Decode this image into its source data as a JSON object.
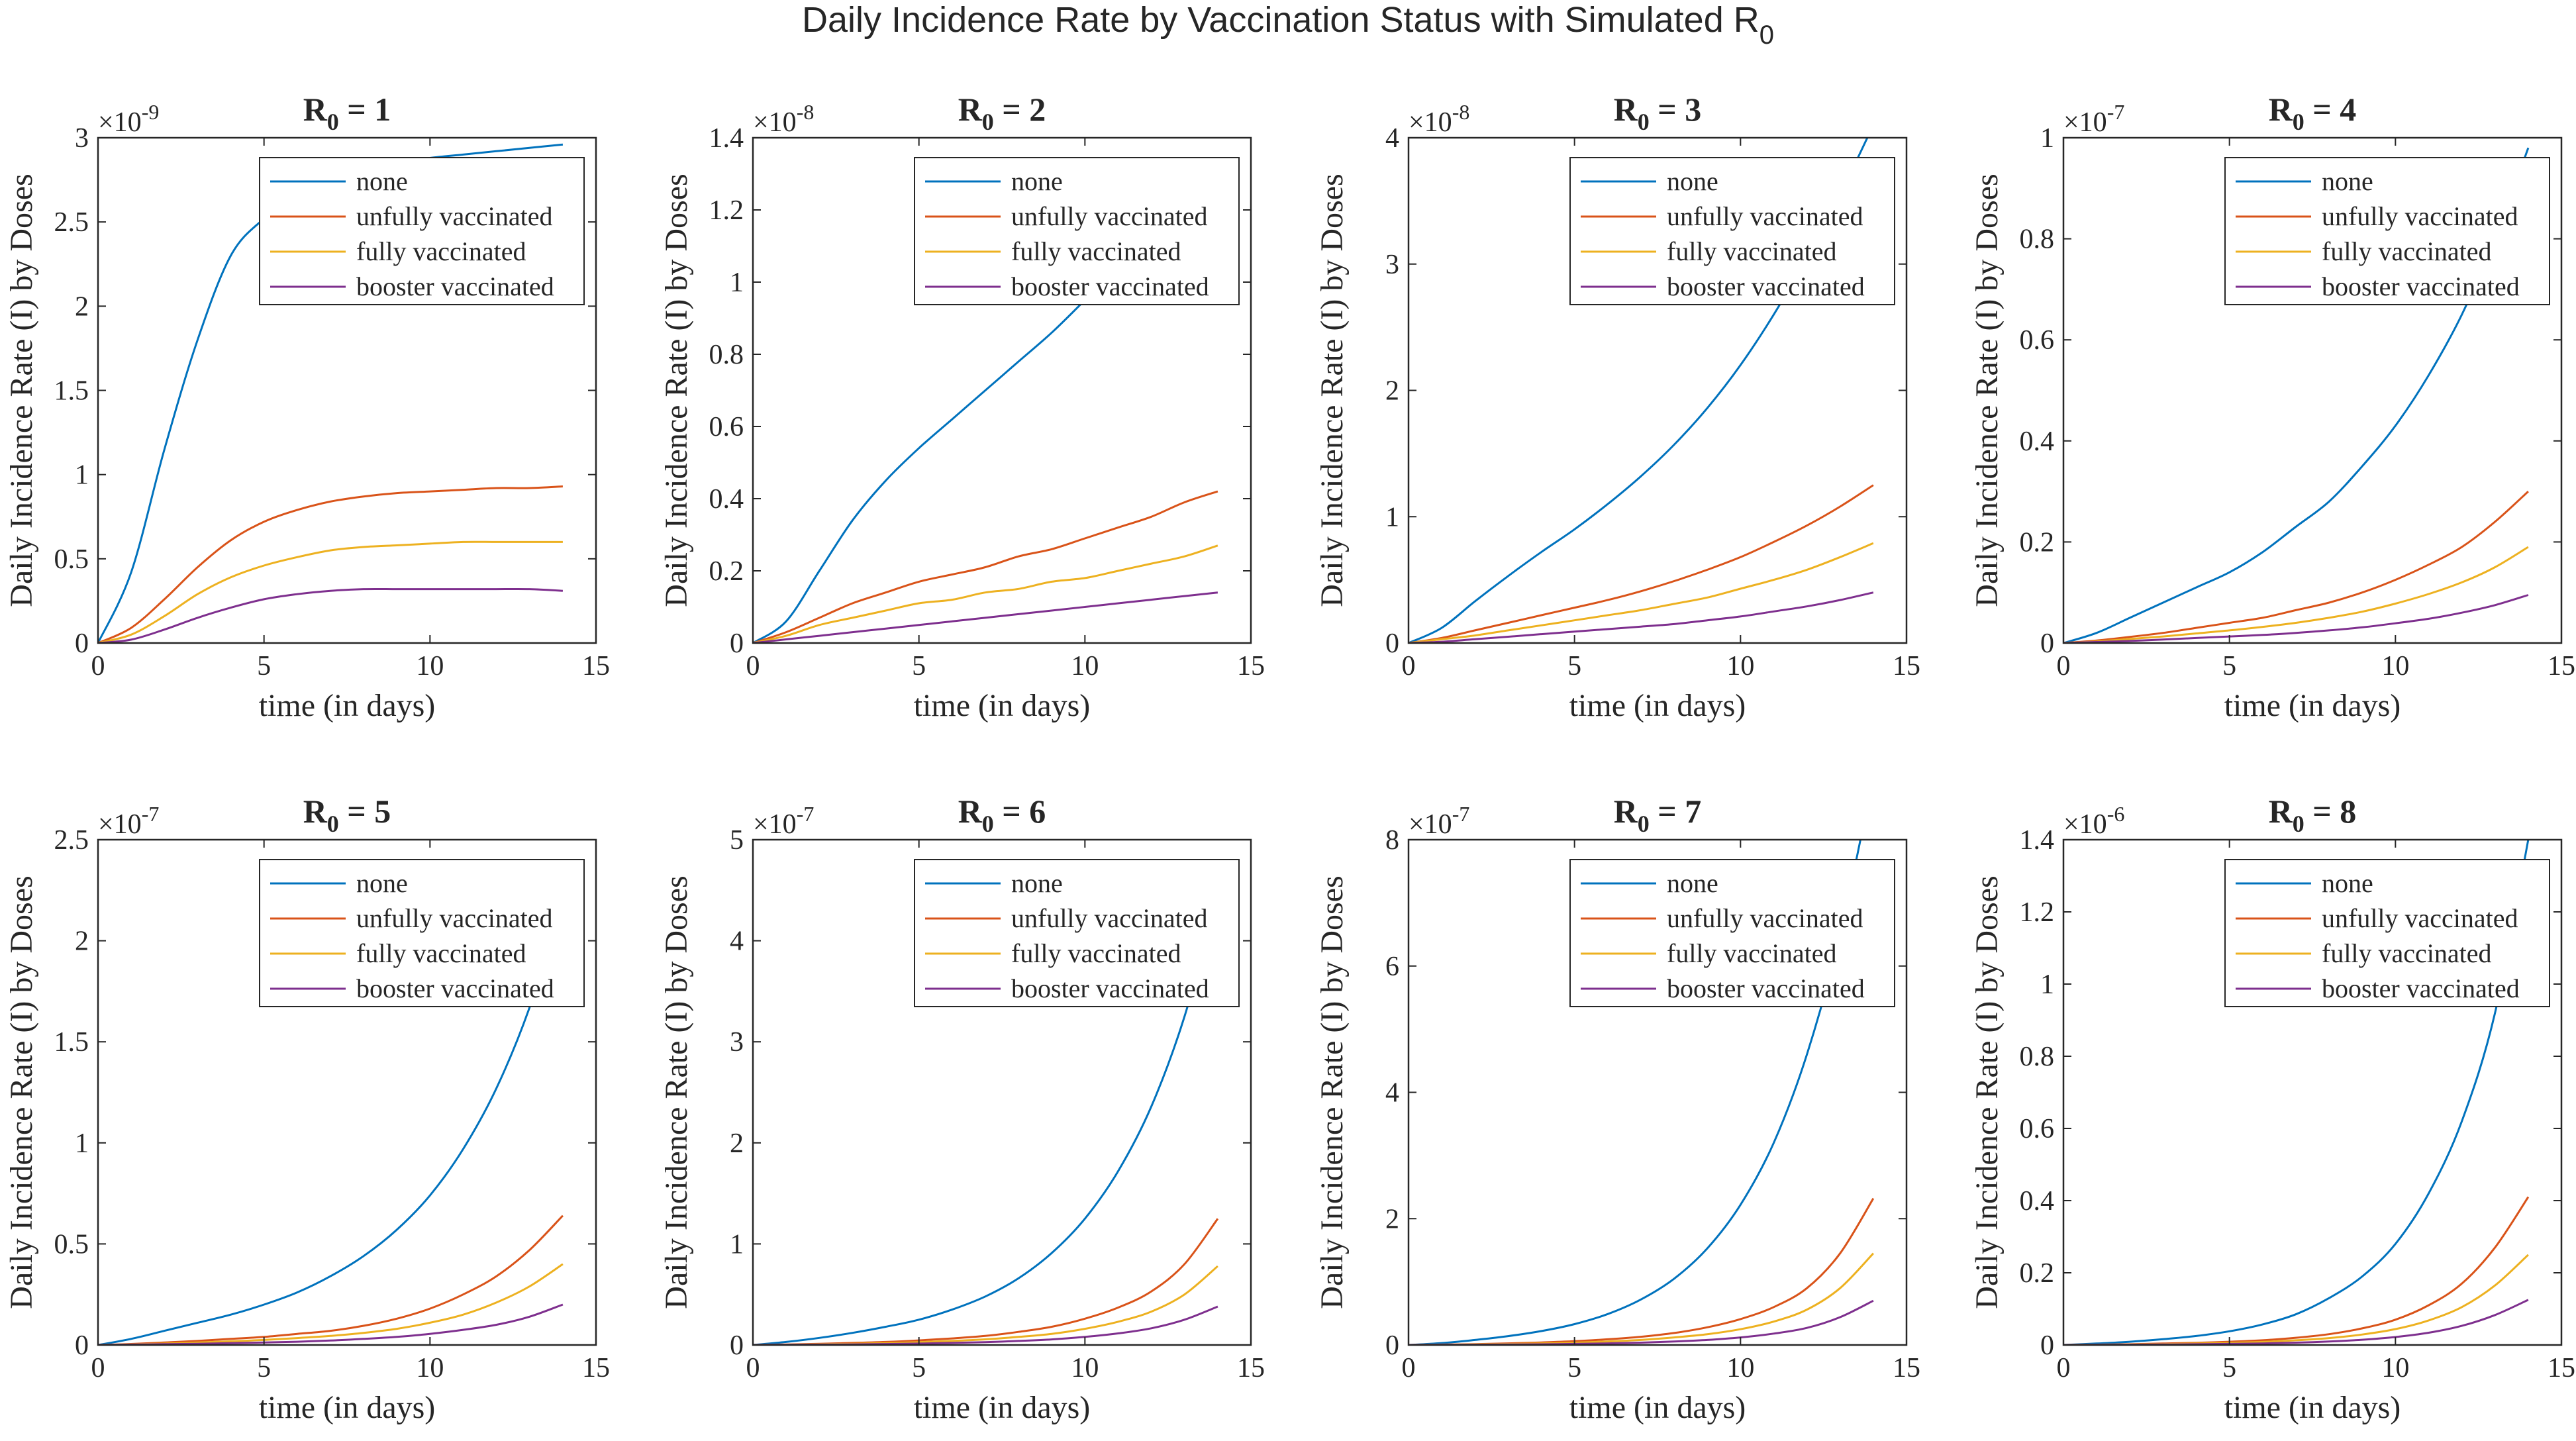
{
  "figure_title": {
    "main": "Daily Incidence Rate by Vaccination Status with Simulated R",
    "sub": "0"
  },
  "colors": {
    "none": "#0072BD",
    "unfully vaccinated": "#D95319",
    "fully vaccinated": "#EDB120",
    "booster vaccinated": "#7E2F8E",
    "axes": "#262626"
  },
  "chart_data": [
    {
      "type": "line",
      "title": "R0 = 1",
      "title_parts": {
        "pre": "R",
        "sub": "0",
        "post": " = 1"
      },
      "xlabel": "time (in days)",
      "ylabel": "Daily Incidence Rate (I) by Doses",
      "xlim": [
        0,
        15
      ],
      "ylim": [
        0,
        3
      ],
      "x_ticks": [
        0,
        5,
        10,
        15
      ],
      "y_ticks": [
        0,
        0.5,
        1,
        1.5,
        2,
        2.5,
        3
      ],
      "y_tick_labels": [
        "0",
        "0.5",
        "1",
        "1.5",
        "2",
        "2.5",
        "3"
      ],
      "y_exponent": {
        "base": "×10",
        "power": "-9"
      },
      "legend_position": "top-right",
      "x": [
        0,
        1,
        2,
        3,
        4,
        5,
        6,
        7,
        8,
        9,
        10,
        11,
        12,
        13,
        14
      ],
      "series": [
        {
          "name": "none",
          "values": [
            0,
            0.42,
            1.15,
            1.8,
            2.3,
            2.52,
            2.66,
            2.75,
            2.81,
            2.85,
            2.88,
            2.9,
            2.92,
            2.94,
            2.96
          ]
        },
        {
          "name": "unfully vaccinated",
          "values": [
            0,
            0.09,
            0.26,
            0.45,
            0.61,
            0.72,
            0.79,
            0.84,
            0.87,
            0.89,
            0.9,
            0.91,
            0.92,
            0.92,
            0.93
          ]
        },
        {
          "name": "fully vaccinated",
          "values": [
            0,
            0.05,
            0.16,
            0.29,
            0.39,
            0.46,
            0.51,
            0.55,
            0.57,
            0.58,
            0.59,
            0.6,
            0.6,
            0.6,
            0.6
          ]
        },
        {
          "name": "booster vaccinated",
          "values": [
            0,
            0.02,
            0.08,
            0.15,
            0.21,
            0.26,
            0.29,
            0.31,
            0.32,
            0.32,
            0.32,
            0.32,
            0.32,
            0.32,
            0.31
          ]
        }
      ]
    },
    {
      "type": "line",
      "title": "R0 = 2",
      "title_parts": {
        "pre": "R",
        "sub": "0",
        "post": " = 2"
      },
      "xlabel": "time (in days)",
      "ylabel": "Daily Incidence Rate (I) by Doses",
      "xlim": [
        0,
        15
      ],
      "ylim": [
        0,
        1.4
      ],
      "x_ticks": [
        0,
        5,
        10,
        15
      ],
      "y_ticks": [
        0,
        0.2,
        0.4,
        0.6,
        0.8,
        1,
        1.2,
        1.4
      ],
      "y_tick_labels": [
        "0",
        "0.2",
        "0.4",
        "0.6",
        "0.8",
        "1",
        "1.2",
        "1.4"
      ],
      "y_exponent": {
        "base": "×10",
        "power": "-8"
      },
      "legend_position": "top-right",
      "x": [
        0,
        1,
        2,
        3,
        4,
        5,
        6,
        7,
        8,
        9,
        10,
        11,
        12,
        13,
        14
      ],
      "series": [
        {
          "name": "none",
          "values": [
            0,
            0.06,
            0.2,
            0.34,
            0.45,
            0.54,
            0.62,
            0.7,
            0.78,
            0.86,
            0.95,
            1.04,
            1.13,
            1.22,
            1.32
          ]
        },
        {
          "name": "unfully vaccinated",
          "values": [
            0,
            0.03,
            0.07,
            0.11,
            0.14,
            0.17,
            0.19,
            0.21,
            0.24,
            0.26,
            0.29,
            0.32,
            0.35,
            0.39,
            0.42
          ]
        },
        {
          "name": "fully vaccinated",
          "values": [
            0,
            0.02,
            0.05,
            0.07,
            0.09,
            0.11,
            0.12,
            0.14,
            0.15,
            0.17,
            0.18,
            0.2,
            0.22,
            0.24,
            0.27
          ]
        },
        {
          "name": "booster vaccinated",
          "values": [
            0,
            0.01,
            0.02,
            0.03,
            0.04,
            0.05,
            0.06,
            0.07,
            0.08,
            0.09,
            0.1,
            0.11,
            0.12,
            0.13,
            0.14
          ]
        }
      ]
    },
    {
      "type": "line",
      "title": "R0 = 3",
      "title_parts": {
        "pre": "R",
        "sub": "0",
        "post": " = 3"
      },
      "xlabel": "time (in days)",
      "ylabel": "Daily Incidence Rate (I) by Doses",
      "xlim": [
        0,
        15
      ],
      "ylim": [
        0,
        4
      ],
      "x_ticks": [
        0,
        5,
        10,
        15
      ],
      "y_ticks": [
        0,
        1,
        2,
        3,
        4
      ],
      "y_tick_labels": [
        "0",
        "1",
        "2",
        "3",
        "4"
      ],
      "y_exponent": {
        "base": "×10",
        "power": "-8"
      },
      "legend_position": "top-right",
      "x": [
        0,
        1,
        2,
        3,
        4,
        5,
        6,
        7,
        8,
        9,
        10,
        11,
        12,
        13,
        14
      ],
      "series": [
        {
          "name": "none",
          "values": [
            0,
            0.12,
            0.33,
            0.53,
            0.72,
            0.9,
            1.1,
            1.32,
            1.57,
            1.86,
            2.2,
            2.6,
            3.05,
            3.55,
            4.1
          ]
        },
        {
          "name": "unfully vaccinated",
          "values": [
            0,
            0.04,
            0.1,
            0.16,
            0.22,
            0.28,
            0.34,
            0.41,
            0.49,
            0.58,
            0.68,
            0.8,
            0.93,
            1.08,
            1.25
          ]
        },
        {
          "name": "fully vaccinated",
          "values": [
            0,
            0.03,
            0.06,
            0.1,
            0.14,
            0.18,
            0.22,
            0.26,
            0.31,
            0.36,
            0.43,
            0.5,
            0.58,
            0.68,
            0.79
          ]
        },
        {
          "name": "booster vaccinated",
          "values": [
            0,
            0.01,
            0.03,
            0.05,
            0.07,
            0.09,
            0.11,
            0.13,
            0.15,
            0.18,
            0.21,
            0.25,
            0.29,
            0.34,
            0.4
          ]
        }
      ]
    },
    {
      "type": "line",
      "title": "R0 = 4",
      "title_parts": {
        "pre": "R",
        "sub": "0",
        "post": " = 4"
      },
      "xlabel": "time (in days)",
      "ylabel": "Daily Incidence Rate (I) by Doses",
      "xlim": [
        0,
        15
      ],
      "ylim": [
        0,
        1
      ],
      "x_ticks": [
        0,
        5,
        10,
        15
      ],
      "y_ticks": [
        0,
        0.2,
        0.4,
        0.6,
        0.8,
        1
      ],
      "y_tick_labels": [
        "0",
        "0.2",
        "0.4",
        "0.6",
        "0.8",
        "1"
      ],
      "y_exponent": {
        "base": "×10",
        "power": "-7"
      },
      "legend_position": "top-right",
      "x": [
        0,
        1,
        2,
        3,
        4,
        5,
        6,
        7,
        8,
        9,
        10,
        11,
        12,
        13,
        14
      ],
      "series": [
        {
          "name": "none",
          "values": [
            0,
            0.02,
            0.05,
            0.08,
            0.11,
            0.14,
            0.18,
            0.23,
            0.28,
            0.35,
            0.43,
            0.53,
            0.65,
            0.8,
            0.98
          ]
        },
        {
          "name": "unfully vaccinated",
          "values": [
            0,
            0.005,
            0.012,
            0.02,
            0.03,
            0.04,
            0.05,
            0.065,
            0.08,
            0.1,
            0.125,
            0.155,
            0.19,
            0.24,
            0.3
          ]
        },
        {
          "name": "fully vaccinated",
          "values": [
            0,
            0.003,
            0.008,
            0.013,
            0.019,
            0.025,
            0.032,
            0.04,
            0.05,
            0.062,
            0.078,
            0.097,
            0.12,
            0.15,
            0.19
          ]
        },
        {
          "name": "booster vaccinated",
          "values": [
            0,
            0.002,
            0.004,
            0.007,
            0.01,
            0.013,
            0.016,
            0.02,
            0.025,
            0.031,
            0.039,
            0.048,
            0.06,
            0.075,
            0.095
          ]
        }
      ]
    },
    {
      "type": "line",
      "title": "R0 = 5",
      "title_parts": {
        "pre": "R",
        "sub": "0",
        "post": " = 5"
      },
      "xlabel": "time (in days)",
      "ylabel": "Daily Incidence Rate (I) by Doses",
      "xlim": [
        0,
        15
      ],
      "ylim": [
        0,
        2.5
      ],
      "x_ticks": [
        0,
        5,
        10,
        15
      ],
      "y_ticks": [
        0,
        0.5,
        1,
        1.5,
        2,
        2.5
      ],
      "y_tick_labels": [
        "0",
        "0.5",
        "1",
        "1.5",
        "2",
        "2.5"
      ],
      "y_exponent": {
        "base": "×10",
        "power": "-7"
      },
      "legend_position": "top-right",
      "x": [
        0,
        1,
        2,
        3,
        4,
        5,
        6,
        7,
        8,
        9,
        10,
        11,
        12,
        13,
        14
      ],
      "series": [
        {
          "name": "none",
          "values": [
            0,
            0.03,
            0.07,
            0.11,
            0.15,
            0.2,
            0.26,
            0.34,
            0.44,
            0.57,
            0.74,
            0.97,
            1.27,
            1.67,
            2.2
          ]
        },
        {
          "name": "unfully vaccinated",
          "values": [
            0,
            0.005,
            0.012,
            0.02,
            0.03,
            0.04,
            0.055,
            0.07,
            0.095,
            0.13,
            0.18,
            0.25,
            0.34,
            0.47,
            0.64
          ]
        },
        {
          "name": "fully vaccinated",
          "values": [
            0,
            0.003,
            0.007,
            0.012,
            0.018,
            0.025,
            0.034,
            0.045,
            0.06,
            0.08,
            0.11,
            0.15,
            0.21,
            0.29,
            0.4
          ]
        },
        {
          "name": "booster vaccinated",
          "values": [
            0,
            0.002,
            0.004,
            0.006,
            0.009,
            0.012,
            0.016,
            0.022,
            0.03,
            0.04,
            0.055,
            0.075,
            0.1,
            0.14,
            0.2
          ]
        }
      ]
    },
    {
      "type": "line",
      "title": "R0 = 6",
      "title_parts": {
        "pre": "R",
        "sub": "0",
        "post": " = 6"
      },
      "xlabel": "time (in days)",
      "ylabel": "Daily Incidence Rate (I) by Doses",
      "xlim": [
        0,
        15
      ],
      "ylim": [
        0,
        5
      ],
      "x_ticks": [
        0,
        5,
        10,
        15
      ],
      "y_ticks": [
        0,
        1,
        2,
        3,
        4,
        5
      ],
      "y_tick_labels": [
        "0",
        "1",
        "2",
        "3",
        "4",
        "5"
      ],
      "y_exponent": {
        "base": "×10",
        "power": "-7"
      },
      "legend_position": "top-right",
      "x": [
        0,
        1,
        2,
        3,
        4,
        5,
        6,
        7,
        8,
        9,
        10,
        11,
        12,
        13,
        14
      ],
      "series": [
        {
          "name": "none",
          "values": [
            0,
            0.03,
            0.07,
            0.12,
            0.18,
            0.25,
            0.35,
            0.48,
            0.66,
            0.91,
            1.25,
            1.72,
            2.36,
            3.25,
            4.45
          ]
        },
        {
          "name": "unfully vaccinated",
          "values": [
            0,
            0.005,
            0.012,
            0.02,
            0.03,
            0.045,
            0.065,
            0.09,
            0.13,
            0.18,
            0.26,
            0.37,
            0.53,
            0.8,
            1.25
          ]
        },
        {
          "name": "fully vaccinated",
          "values": [
            0,
            0.003,
            0.007,
            0.012,
            0.019,
            0.028,
            0.04,
            0.056,
            0.08,
            0.11,
            0.16,
            0.23,
            0.33,
            0.5,
            0.78
          ]
        },
        {
          "name": "booster vaccinated",
          "values": [
            0,
            0.002,
            0.004,
            0.006,
            0.009,
            0.014,
            0.02,
            0.028,
            0.04,
            0.055,
            0.08,
            0.115,
            0.165,
            0.25,
            0.38
          ]
        }
      ]
    },
    {
      "type": "line",
      "title": "R0 = 7",
      "title_parts": {
        "pre": "R",
        "sub": "0",
        "post": " = 7"
      },
      "xlabel": "time (in days)",
      "ylabel": "Daily Incidence Rate (I) by Doses",
      "xlim": [
        0,
        15
      ],
      "ylim": [
        0,
        8
      ],
      "x_ticks": [
        0,
        5,
        10,
        15
      ],
      "y_ticks": [
        0,
        2,
        4,
        6,
        8
      ],
      "y_tick_labels": [
        "0",
        "2",
        "4",
        "6",
        "8"
      ],
      "y_exponent": {
        "base": "×10",
        "power": "-7"
      },
      "legend_position": "top-right",
      "x": [
        0,
        1,
        2,
        3,
        4,
        5,
        6,
        7,
        8,
        9,
        10,
        11,
        12,
        13,
        14
      ],
      "series": [
        {
          "name": "none",
          "values": [
            0,
            0.03,
            0.08,
            0.14,
            0.22,
            0.33,
            0.49,
            0.72,
            1.05,
            1.53,
            2.22,
            3.2,
            4.6,
            6.5,
            9.0
          ]
        },
        {
          "name": "unfully vaccinated",
          "values": [
            0,
            0.006,
            0.014,
            0.025,
            0.04,
            0.06,
            0.09,
            0.13,
            0.19,
            0.28,
            0.41,
            0.6,
            0.9,
            1.45,
            2.32
          ]
        },
        {
          "name": "fully vaccinated",
          "values": [
            0,
            0.004,
            0.009,
            0.016,
            0.025,
            0.037,
            0.055,
            0.08,
            0.12,
            0.17,
            0.25,
            0.37,
            0.56,
            0.9,
            1.45
          ]
        },
        {
          "name": "booster vaccinated",
          "values": [
            0,
            0.002,
            0.004,
            0.007,
            0.011,
            0.017,
            0.025,
            0.037,
            0.055,
            0.08,
            0.12,
            0.18,
            0.27,
            0.44,
            0.7
          ]
        }
      ]
    },
    {
      "type": "line",
      "title": "R0 = 8",
      "title_parts": {
        "pre": "R",
        "sub": "0",
        "post": " = 8"
      },
      "xlabel": "time (in days)",
      "ylabel": "Daily Incidence Rate (I) by Doses",
      "xlim": [
        0,
        15
      ],
      "ylim": [
        0,
        1.4
      ],
      "x_ticks": [
        0,
        5,
        10,
        15
      ],
      "y_ticks": [
        0,
        0.2,
        0.4,
        0.6,
        0.8,
        1,
        1.2,
        1.4
      ],
      "y_tick_labels": [
        "0",
        "0.2",
        "0.4",
        "0.6",
        "0.8",
        "1",
        "1.2",
        "1.4"
      ],
      "y_exponent": {
        "base": "×10",
        "power": "-6"
      },
      "legend_position": "top-right",
      "x": [
        0,
        1,
        2,
        3,
        4,
        5,
        6,
        7,
        8,
        9,
        10,
        11,
        12,
        13,
        14
      ],
      "series": [
        {
          "name": "none",
          "values": [
            0,
            0.004,
            0.009,
            0.016,
            0.025,
            0.038,
            0.057,
            0.085,
            0.13,
            0.19,
            0.28,
            0.42,
            0.62,
            0.92,
            1.4
          ]
        },
        {
          "name": "unfully vaccinated",
          "values": [
            0,
            0.001,
            0.002,
            0.004,
            0.006,
            0.009,
            0.013,
            0.02,
            0.03,
            0.046,
            0.07,
            0.11,
            0.17,
            0.27,
            0.41
          ]
        },
        {
          "name": "fully vaccinated",
          "values": [
            0,
            0.0006,
            0.0013,
            0.0024,
            0.004,
            0.006,
            0.0085,
            0.013,
            0.019,
            0.029,
            0.044,
            0.068,
            0.105,
            0.165,
            0.25
          ]
        },
        {
          "name": "booster vaccinated",
          "values": [
            0,
            0.0003,
            0.0007,
            0.0012,
            0.002,
            0.003,
            0.0043,
            0.0065,
            0.0095,
            0.0145,
            0.022,
            0.034,
            0.053,
            0.083,
            0.125
          ]
        }
      ]
    }
  ]
}
